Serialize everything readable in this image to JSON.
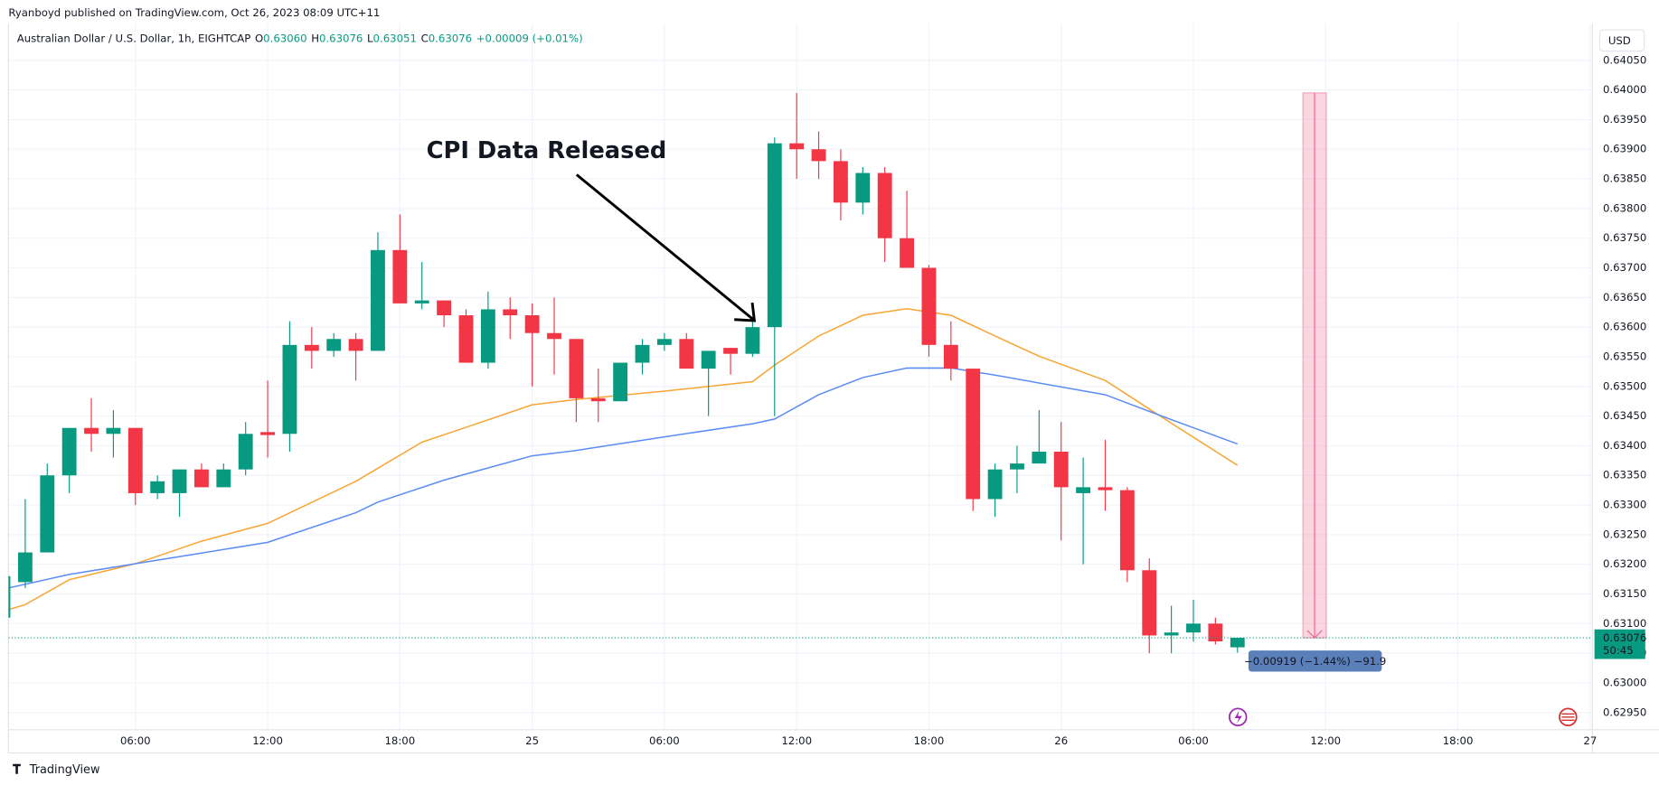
{
  "header": {
    "published": "Ryanboyd published on TradingView.com, Oct 26, 2023 08:09 UTC+11"
  },
  "footer": {
    "brand": "TradingView"
  },
  "chart_data": {
    "type": "candlestick",
    "symbol": "Australian Dollar / U.S. Dollar, 1h, EIGHTCAP",
    "legend_fields": [
      {
        "label": "O",
        "value": "0.63060"
      },
      {
        "label": "H",
        "value": "0.63076"
      },
      {
        "label": "L",
        "value": "0.63051"
      },
      {
        "label": "C",
        "value": "0.63076"
      }
    ],
    "legend_change": "+0.00009 (+0.01%)",
    "currency": "USD",
    "annotation": "CPI Data Released",
    "countdown": "50:45",
    "up_color": "#089981",
    "down_color": "#f23645",
    "x": [
      0,
      1,
      2,
      3,
      4,
      5,
      6,
      7,
      8,
      9,
      10,
      11,
      12,
      13,
      14,
      15,
      16,
      17,
      18,
      19,
      20,
      21,
      22,
      23,
      24,
      25,
      26,
      27,
      28,
      29,
      30,
      31,
      32,
      33,
      34,
      35,
      36,
      37,
      38,
      39,
      40,
      41,
      42,
      43,
      44,
      45,
      46,
      47,
      48,
      49,
      50,
      51,
      52,
      53,
      54,
      55,
      56
    ],
    "open": [
      0.6311,
      0.6317,
      0.6322,
      0.6335,
      0.6343,
      0.6342,
      0.6343,
      0.6332,
      0.6332,
      0.6336,
      0.6333,
      0.6336,
      0.63423,
      0.6342,
      0.6357,
      0.6356,
      0.6358,
      0.6356,
      0.6373,
      0.6364,
      0.63645,
      0.6362,
      0.6354,
      0.6363,
      0.6362,
      0.6359,
      0.6358,
      0.6348,
      0.63475,
      0.6354,
      0.6357,
      0.6358,
      0.6353,
      0.63565,
      0.63555,
      0.636,
      0.6391,
      0.639,
      0.6388,
      0.6381,
      0.6386,
      0.6375,
      0.637,
      0.6357,
      0.6353,
      0.6331,
      0.6336,
      0.6337,
      0.6339,
      0.6332,
      0.6333,
      0.63325,
      0.6319,
      0.6308,
      0.63085,
      0.631,
      0.6306
    ],
    "high": [
      0.6318,
      0.6331,
      0.6337,
      0.6343,
      0.6348,
      0.6346,
      0.6343,
      0.6335,
      0.6336,
      0.6337,
      0.6337,
      0.6344,
      0.6351,
      0.6361,
      0.636,
      0.6359,
      0.6359,
      0.6376,
      0.6379,
      0.6371,
      0.63645,
      0.6363,
      0.6366,
      0.6365,
      0.6364,
      0.6365,
      0.6358,
      0.6353,
      0.6354,
      0.6358,
      0.6359,
      0.6359,
      0.6356,
      0.63565,
      0.6361,
      0.6392,
      0.63995,
      0.6393,
      0.639,
      0.6387,
      0.6387,
      0.6383,
      0.63705,
      0.6361,
      0.6353,
      0.6337,
      0.634,
      0.6346,
      0.6344,
      0.6338,
      0.6341,
      0.6333,
      0.6321,
      0.6313,
      0.6314,
      0.6311,
      0.63076
    ],
    "low": [
      0.631,
      0.6316,
      0.6322,
      0.6332,
      0.6339,
      0.6338,
      0.633,
      0.6331,
      0.6328,
      0.6333,
      0.6333,
      0.6335,
      0.6338,
      0.6339,
      0.6353,
      0.6355,
      0.6351,
      0.6356,
      0.6364,
      0.6363,
      0.636,
      0.6354,
      0.6353,
      0.6358,
      0.635,
      0.6352,
      0.6344,
      0.6344,
      0.63475,
      0.6352,
      0.6356,
      0.6353,
      0.6345,
      0.6352,
      0.6355,
      0.6345,
      0.6385,
      0.6385,
      0.6378,
      0.6379,
      0.6371,
      0.637,
      0.6355,
      0.6351,
      0.6329,
      0.6328,
      0.6332,
      0.6337,
      0.6324,
      0.632,
      0.6329,
      0.6317,
      0.6305,
      0.6305,
      0.6307,
      0.63065,
      0.63051
    ],
    "close": [
      0.6318,
      0.6322,
      0.6335,
      0.6343,
      0.6342,
      0.6343,
      0.6332,
      0.6334,
      0.6336,
      0.6333,
      0.6336,
      0.6342,
      0.63418,
      0.6357,
      0.6356,
      0.6358,
      0.6356,
      0.6373,
      0.6364,
      0.63645,
      0.6362,
      0.6354,
      0.6363,
      0.6362,
      0.6359,
      0.6358,
      0.6348,
      0.63475,
      0.6354,
      0.6357,
      0.6358,
      0.6353,
      0.6356,
      0.63555,
      0.636,
      0.6391,
      0.639,
      0.6388,
      0.6381,
      0.6386,
      0.6375,
      0.637,
      0.6357,
      0.6353,
      0.6331,
      0.6336,
      0.6337,
      0.6339,
      0.6333,
      0.6333,
      0.63325,
      0.6319,
      0.6308,
      0.63085,
      0.631,
      0.6307,
      0.63076
    ],
    "lines": [
      {
        "color": "#f7a534",
        "x": [
          0,
          1,
          3,
          6,
          9,
          12,
          16,
          19,
          21,
          24,
          26,
          30,
          34,
          35,
          37,
          39,
          41,
          43,
          45,
          47,
          50,
          53,
          56
        ],
        "values": [
          0.63121,
          0.63132,
          0.63174,
          0.63201,
          0.63239,
          0.63269,
          0.6334,
          0.63406,
          0.63431,
          0.63469,
          0.63478,
          0.63492,
          0.63508,
          0.63536,
          0.63585,
          0.6362,
          0.63631,
          0.6362,
          0.63585,
          0.63551,
          0.6351,
          0.63438,
          0.63367
        ]
      },
      {
        "color": "#5b8cf5",
        "x": [
          0,
          3,
          6,
          9,
          12,
          16,
          17,
          20,
          24,
          26,
          30,
          34,
          35,
          37,
          39,
          41,
          43,
          45,
          50,
          53,
          56
        ],
        "values": [
          0.63158,
          0.63183,
          0.63201,
          0.63219,
          0.63237,
          0.63287,
          0.63305,
          0.63342,
          0.63383,
          0.63392,
          0.63415,
          0.63437,
          0.63445,
          0.63486,
          0.63515,
          0.63531,
          0.63531,
          0.63519,
          0.63486,
          0.63444,
          0.63403
        ]
      }
    ],
    "measure": {
      "x": 59.5,
      "from": 0.63995,
      "to": 0.63076,
      "label": "−0.00919 (−1.44%) −91.9",
      "color": "#f7a1b8"
    },
    "xlim": [
      0.24,
      72.1
    ],
    "ylim": [
      0.62921,
      0.64112
    ],
    "xticks": [
      {
        "value": 6,
        "label": "06:00"
      },
      {
        "value": 12,
        "label": "12:00"
      },
      {
        "value": 18,
        "label": "18:00"
      },
      {
        "value": 24,
        "label": "25"
      },
      {
        "value": 30,
        "label": "06:00"
      },
      {
        "value": 36,
        "label": "12:00"
      },
      {
        "value": 42,
        "label": "18:00"
      },
      {
        "value": 48,
        "label": "26"
      },
      {
        "value": 54,
        "label": "06:00"
      },
      {
        "value": 60,
        "label": "12:00"
      },
      {
        "value": 66,
        "label": "18:00"
      },
      {
        "value": 72,
        "label": "27"
      }
    ],
    "yticks": [
      {
        "value": 0.6295,
        "label": "0.62950"
      },
      {
        "value": 0.63,
        "label": "0.63000"
      },
      {
        "value": 0.6305,
        "label": "0.63050"
      },
      {
        "value": 0.631,
        "label": "0.63100"
      },
      {
        "value": 0.6315,
        "label": "0.63150"
      },
      {
        "value": 0.632,
        "label": "0.63200"
      },
      {
        "value": 0.6325,
        "label": "0.63250"
      },
      {
        "value": 0.633,
        "label": "0.63300"
      },
      {
        "value": 0.6335,
        "label": "0.63350"
      },
      {
        "value": 0.634,
        "label": "0.63400"
      },
      {
        "value": 0.6345,
        "label": "0.63450"
      },
      {
        "value": 0.635,
        "label": "0.63500"
      },
      {
        "value": 0.6355,
        "label": "0.63550"
      },
      {
        "value": 0.636,
        "label": "0.63600"
      },
      {
        "value": 0.6365,
        "label": "0.63650"
      },
      {
        "value": 0.637,
        "label": "0.63700"
      },
      {
        "value": 0.6375,
        "label": "0.63750"
      },
      {
        "value": 0.638,
        "label": "0.63800"
      },
      {
        "value": 0.6385,
        "label": "0.63850"
      },
      {
        "value": 0.639,
        "label": "0.63900"
      },
      {
        "value": 0.6395,
        "label": "0.63950"
      },
      {
        "value": 0.64,
        "label": "0.64000"
      },
      {
        "value": 0.6405,
        "label": "0.64050"
      }
    ],
    "grid": true
  }
}
